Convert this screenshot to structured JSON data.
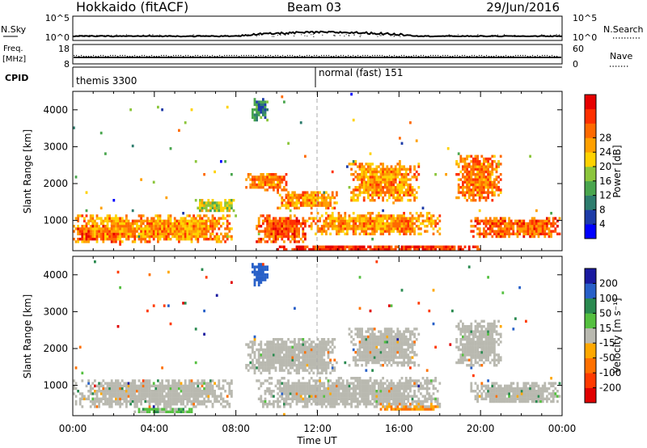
{
  "header": {
    "station": "Hokkaido (fitACF)",
    "beam": "Beam 03",
    "date": "29/Jun/2016"
  },
  "strip": {
    "nsky_label": "N.Sky",
    "nsearch_label": "N.Search",
    "noise_ticks": [
      "10^5",
      "10^0"
    ],
    "freq_label_1": "Freq.",
    "freq_label_2": "[MHz]",
    "freq_ticks": [
      "18",
      "8"
    ],
    "nave_label": "Nave",
    "nave_ticks": [
      "60",
      "0"
    ],
    "cpid_label": "CPID",
    "cpid_segments": [
      "themis 3300",
      "normal (fast) 151"
    ]
  },
  "colorbars": {
    "power": {
      "label": "Power [dB]",
      "ticks": [
        "28",
        "24",
        "20",
        "16",
        "12",
        "8",
        "4"
      ],
      "colors": [
        "#0000ff",
        "#1e3ca8",
        "#2e7d6e",
        "#4aa64e",
        "#8cc63c",
        "#ffd200",
        "#ffa000",
        "#ff6a00",
        "#ff3000",
        "#e60000"
      ]
    },
    "velocity": {
      "label": "Velocity [m s⁻¹]",
      "ticks": [
        "200",
        "100",
        "50",
        "15",
        "-15",
        "-50",
        "-100",
        "-200"
      ],
      "colors": [
        "#1a1aa0",
        "#2860c8",
        "#2a8a50",
        "#55c040",
        "#b9b9b0",
        "#ffa800",
        "#ff7000",
        "#ff3a00",
        "#e00000"
      ]
    }
  },
  "x_axis": {
    "label": "Time UT",
    "ticks": [
      "00:00",
      "04:00",
      "08:00",
      "12:00",
      "16:00",
      "20:00",
      "00:00"
    ]
  },
  "chart_data": [
    {
      "type": "heatmap",
      "ylabel": "Slant Range [km]",
      "xlabel": "Time UT",
      "xlim": [
        0,
        24
      ],
      "ylim": [
        180,
        4500
      ],
      "yticks": [
        1000,
        2000,
        3000,
        4000
      ],
      "color_quantity": "Power [dB]",
      "blobs": [
        {
          "t0": 0.0,
          "t1": 7.8,
          "r0": 400,
          "r1": 1150,
          "v": 22
        },
        {
          "t0": 0.0,
          "t1": 2.5,
          "r0": 400,
          "r1": 900,
          "v": 27
        },
        {
          "t0": 3.5,
          "t1": 7.0,
          "r0": 500,
          "r1": 1000,
          "v": 25
        },
        {
          "t0": 6.0,
          "t1": 8.0,
          "r0": 1200,
          "r1": 1600,
          "v": 16
        },
        {
          "t0": 9.0,
          "t1": 11.5,
          "r0": 400,
          "r1": 1150,
          "v": 26
        },
        {
          "t0": 11.5,
          "t1": 18.0,
          "r0": 600,
          "r1": 1200,
          "v": 22
        },
        {
          "t0": 10.0,
          "t1": 13.0,
          "r0": 1300,
          "r1": 1800,
          "v": 22
        },
        {
          "t0": 13.5,
          "t1": 17.0,
          "r0": 1500,
          "r1": 2600,
          "v": 22
        },
        {
          "t0": 8.5,
          "t1": 10.5,
          "r0": 1800,
          "r1": 2300,
          "v": 24
        },
        {
          "t0": 8.8,
          "t1": 9.6,
          "r0": 3700,
          "r1": 4300,
          "v": 10
        },
        {
          "t0": 18.8,
          "t1": 21.0,
          "r0": 1500,
          "r1": 2800,
          "v": 24
        },
        {
          "t0": 19.5,
          "t1": 24.0,
          "r0": 500,
          "r1": 1100,
          "v": 25
        },
        {
          "t0": 10.0,
          "t1": 20.0,
          "r0": 180,
          "r1": 350,
          "v": 28
        }
      ]
    },
    {
      "type": "heatmap",
      "ylabel": "Slant Range [km]",
      "xlabel": "Time UT",
      "xlim": [
        0,
        24
      ],
      "ylim": [
        180,
        4500
      ],
      "yticks": [
        1000,
        2000,
        3000,
        4000
      ],
      "color_quantity": "Velocity [m s⁻¹]",
      "blobs": [
        {
          "t0": 0.0,
          "t1": 7.8,
          "r0": 400,
          "r1": 1150,
          "v": 0
        },
        {
          "t0": 9.0,
          "t1": 18.0,
          "r0": 400,
          "r1": 1200,
          "v": 0
        },
        {
          "t0": 8.5,
          "t1": 13.0,
          "r0": 1300,
          "r1": 2300,
          "v": 0
        },
        {
          "t0": 13.5,
          "t1": 17.0,
          "r0": 1500,
          "r1": 2600,
          "v": 0
        },
        {
          "t0": 18.8,
          "t1": 21.0,
          "r0": 1500,
          "r1": 2800,
          "v": 0
        },
        {
          "t0": 19.5,
          "t1": 24.0,
          "r0": 500,
          "r1": 1100,
          "v": 0
        },
        {
          "t0": 15.0,
          "t1": 18.0,
          "r0": 300,
          "r1": 500,
          "v": -50
        },
        {
          "t0": 8.8,
          "t1": 9.6,
          "r0": 3700,
          "r1": 4300,
          "v": 150
        },
        {
          "t0": 3.0,
          "t1": 6.0,
          "r0": 250,
          "r1": 400,
          "v": 30
        }
      ]
    }
  ]
}
